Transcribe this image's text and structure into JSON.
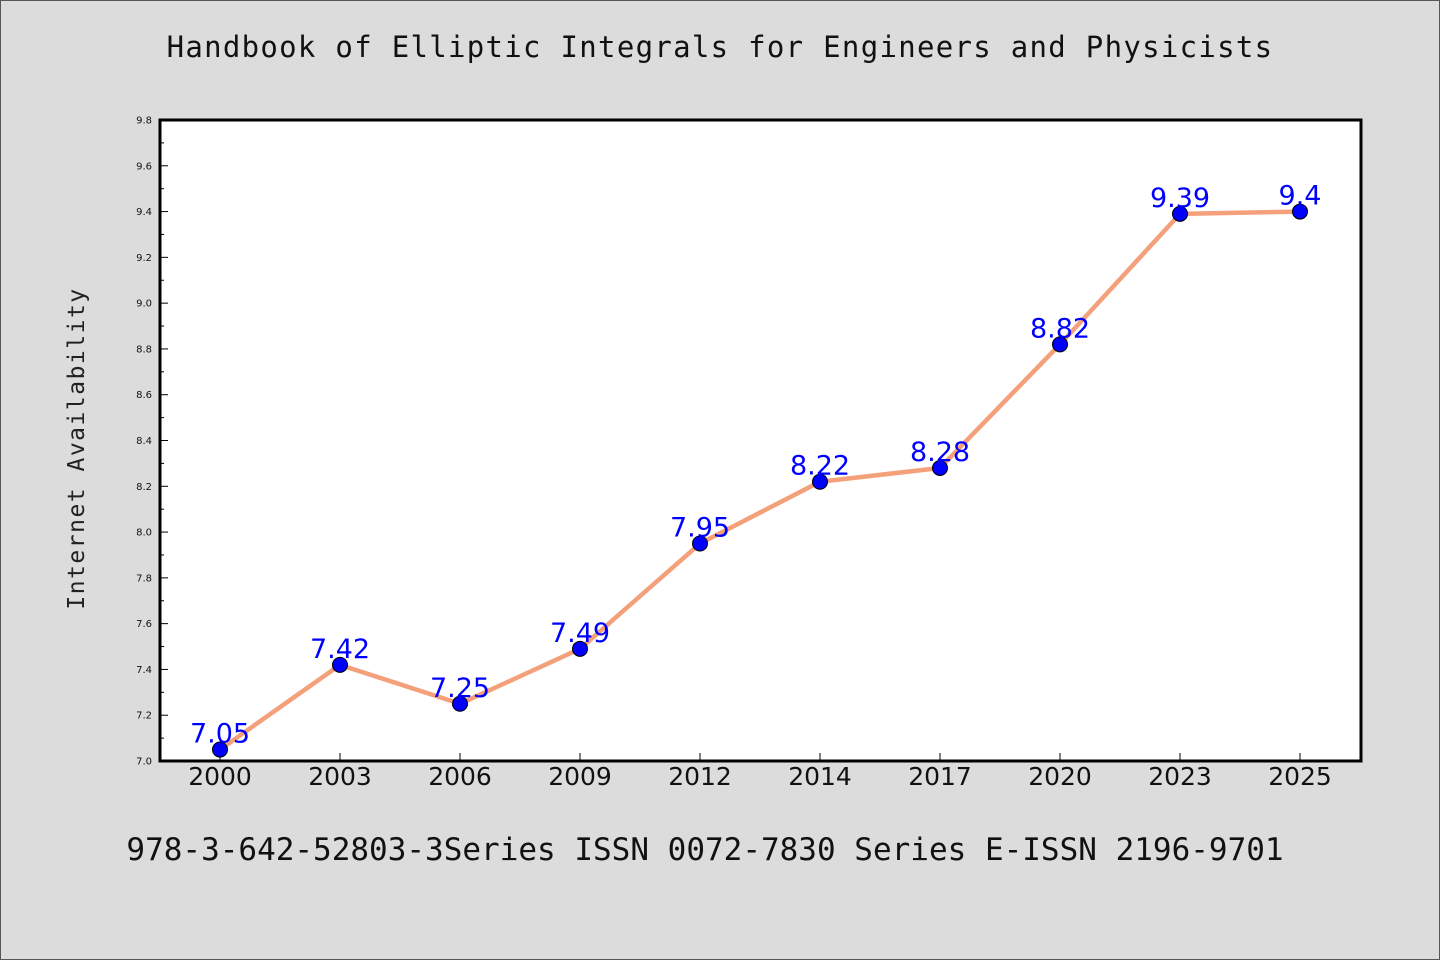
{
  "chart_data": {
    "type": "line",
    "title": "Handbook of Elliptic Integrals for Engineers and Physicists",
    "subtitle": "978-3-642-52803-3Series ISSN 0072-7830 Series E-ISSN 2196-9701",
    "xlabel": "",
    "ylabel": "Internet Availability",
    "categories": [
      "2000",
      "2003",
      "2006",
      "2009",
      "2012",
      "2014",
      "2017",
      "2020",
      "2023",
      "2025"
    ],
    "values": [
      7.05,
      7.42,
      7.25,
      7.49,
      7.95,
      8.22,
      8.28,
      8.82,
      9.39,
      9.4
    ],
    "data_labels": [
      "7.05",
      "7.42",
      "7.25",
      "7.49",
      "7.95",
      "8.22",
      "8.28",
      "8.82",
      "9.39",
      "9.4"
    ],
    "yticks": [
      "7.0",
      "7.2",
      "7.4",
      "7.6",
      "7.8",
      "8.0",
      "8.2",
      "8.4",
      "8.6",
      "8.8",
      "9.0",
      "9.2",
      "9.4",
      "9.6",
      "9.8"
    ],
    "ylim": [
      7.0,
      9.8
    ],
    "grid": false,
    "line_color": "#f4a07a",
    "marker_color": "#0000ff",
    "label_color": "#0000ff",
    "background_color": "#dcdcdc",
    "plot_background_color": "#ffffff"
  }
}
